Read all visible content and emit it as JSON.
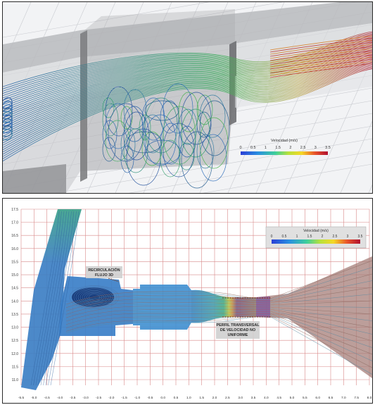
{
  "top_panel": {
    "legend": {
      "title": "Velocidad (m/s)",
      "ticks": [
        "0",
        "0.5",
        "1",
        "1.5",
        "2",
        "2.5",
        "3",
        "3.5"
      ]
    }
  },
  "bottom_panel": {
    "legend": {
      "title": "Velocidad (m/s)",
      "ticks": [
        "0",
        "0.5",
        "1",
        "1.5",
        "2",
        "2.5",
        "3",
        "3.5"
      ]
    },
    "annotations": {
      "recirculation_line1": "RECIRCULACIÓN",
      "recirculation_line2": "FLUJO 3D",
      "profile_line1": "PERFIL TRANSVERSAL",
      "profile_line2": "DE VELOCIDAD NO",
      "profile_line3": "UNIFORME"
    },
    "y_ticks": [
      "17.5",
      "17.0",
      "16.5",
      "16.0",
      "15.5",
      "15.0",
      "14.5",
      "14.0",
      "13.5",
      "13.0",
      "12.5",
      "12.0",
      "11.5",
      "11.0"
    ],
    "x_ticks": [
      "-5.5",
      "-5.0",
      "-4.5",
      "-4.0",
      "-3.5",
      "-3.0",
      "-2.5",
      "-2.0",
      "-1.5",
      "-1.0",
      "-0.5",
      "0.0",
      "0.5",
      "1.0",
      "1.5",
      "2.0",
      "2.5",
      "3.0",
      "3.5",
      "4.0",
      "4.5",
      "5.0",
      "5.5",
      "6.0",
      "6.5",
      "7.0",
      "7.5",
      "8.0"
    ]
  },
  "colors": {
    "low": "#1f4fb4",
    "mid": "#3fbf7f",
    "yellow": "#f2e23a",
    "high": "#b31b3a"
  }
}
